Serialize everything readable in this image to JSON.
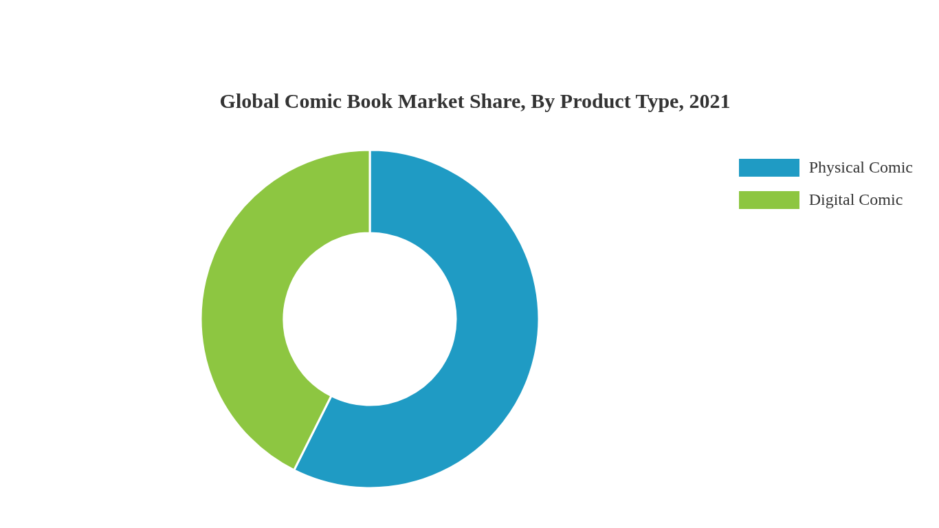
{
  "chart_data": {
    "type": "donut",
    "title": "Global Comic Book Market Share, By Product Type, 2021",
    "categories": [
      "Physical Comic",
      "Digital Comic"
    ],
    "values": [
      57.4,
      42.6
    ],
    "colors": [
      "#1f9bc4",
      "#8dc641"
    ],
    "legend": "top right"
  }
}
